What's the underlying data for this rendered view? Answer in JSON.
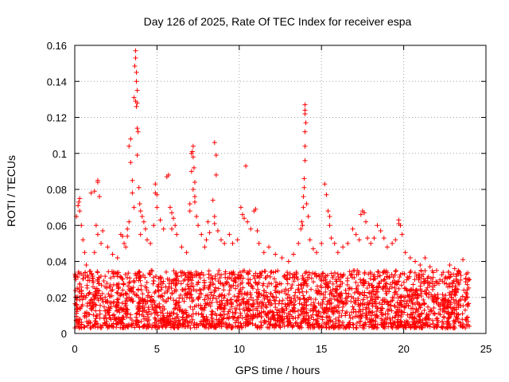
{
  "chart_data": {
    "type": "scatter",
    "title": "Day 126 of 2025, Rate Of TEC Index for receiver espa",
    "xlabel": "GPS time / hours",
    "ylabel": "ROTI / TECUs",
    "xlim": [
      0,
      25
    ],
    "ylim": [
      0,
      0.16
    ],
    "x_ticks": [
      0,
      5,
      10,
      15,
      20,
      25
    ],
    "y_ticks": [
      0,
      0.02,
      0.04,
      0.06,
      0.08,
      0.1,
      0.12,
      0.14,
      0.16
    ],
    "x_tick_labels": [
      "0",
      "5",
      "10",
      "15",
      "20",
      "25"
    ],
    "y_tick_labels": [
      "0",
      "0.02",
      "0.04",
      "0.06",
      "0.08",
      "0.1",
      "0.12",
      "0.14",
      "0.16"
    ],
    "grid": true,
    "marker": "+",
    "color": "#ff0000",
    "background_band": {
      "description": "dense ROTI scatter between 0.003 and ~0.035 TECU across all hours",
      "x_range": [
        0,
        24
      ],
      "y_range": [
        0.003,
        0.035
      ]
    },
    "series": [
      {
        "name": "espa",
        "points": [
          [
            0.1,
            0.065
          ],
          [
            0.2,
            0.071
          ],
          [
            0.25,
            0.073
          ],
          [
            0.3,
            0.068
          ],
          [
            0.3,
            0.075
          ],
          [
            0.4,
            0.06
          ],
          [
            0.5,
            0.052
          ],
          [
            0.6,
            0.045
          ],
          [
            0.7,
            0.038
          ],
          [
            1.0,
            0.078
          ],
          [
            1.2,
            0.079
          ],
          [
            1.4,
            0.084
          ],
          [
            1.4,
            0.085
          ],
          [
            1.5,
            0.076
          ],
          [
            1.3,
            0.06
          ],
          [
            1.4,
            0.055
          ],
          [
            1.6,
            0.05
          ],
          [
            1.7,
            0.057
          ],
          [
            1.2,
            0.045
          ],
          [
            2.0,
            0.048
          ],
          [
            2.3,
            0.044
          ],
          [
            2.6,
            0.042
          ],
          [
            2.8,
            0.055
          ],
          [
            2.9,
            0.054
          ],
          [
            3.0,
            0.05
          ],
          [
            3.2,
            0.058
          ],
          [
            3.3,
            0.104
          ],
          [
            3.4,
            0.108
          ],
          [
            3.4,
            0.095
          ],
          [
            3.5,
            0.085
          ],
          [
            3.5,
            0.078
          ],
          [
            3.6,
            0.07
          ],
          [
            3.3,
            0.062
          ],
          [
            3.2,
            0.054
          ],
          [
            3.1,
            0.048
          ],
          [
            3.6,
            0.131
          ],
          [
            3.65,
            0.1485
          ],
          [
            3.7,
            0.157
          ],
          [
            3.7,
            0.153
          ],
          [
            3.75,
            0.145
          ],
          [
            3.75,
            0.14
          ],
          [
            3.8,
            0.135
          ],
          [
            3.7,
            0.129
          ],
          [
            3.75,
            0.126
          ],
          [
            3.8,
            0.128
          ],
          [
            3.8,
            0.114
          ],
          [
            3.85,
            0.112
          ],
          [
            3.8,
            0.099
          ],
          [
            3.9,
            0.081
          ],
          [
            3.95,
            0.072
          ],
          [
            4.0,
            0.068
          ],
          [
            4.1,
            0.065
          ],
          [
            4.2,
            0.062
          ],
          [
            4.3,
            0.058
          ],
          [
            4.0,
            0.055
          ],
          [
            4.4,
            0.052
          ],
          [
            4.6,
            0.05
          ],
          [
            4.8,
            0.06
          ],
          [
            4.9,
            0.078
          ],
          [
            4.9,
            0.083
          ],
          [
            5.0,
            0.077
          ],
          [
            5.0,
            0.07
          ],
          [
            5.2,
            0.063
          ],
          [
            5.4,
            0.058
          ],
          [
            5.6,
            0.087
          ],
          [
            5.7,
            0.088
          ],
          [
            5.8,
            0.07
          ],
          [
            5.9,
            0.067
          ],
          [
            6.0,
            0.064
          ],
          [
            6.1,
            0.06
          ],
          [
            5.9,
            0.058
          ],
          [
            6.2,
            0.055
          ],
          [
            6.5,
            0.048
          ],
          [
            6.8,
            0.045
          ],
          [
            7.0,
            0.072
          ],
          [
            7.0,
            0.068
          ],
          [
            7.1,
            0.09
          ],
          [
            7.1,
            0.1
          ],
          [
            7.15,
            0.101
          ],
          [
            7.2,
            0.104
          ],
          [
            7.2,
            0.098
          ],
          [
            7.25,
            0.092
          ],
          [
            7.3,
            0.084
          ],
          [
            7.2,
            0.08
          ],
          [
            7.3,
            0.076
          ],
          [
            7.3,
            0.073
          ],
          [
            7.4,
            0.065
          ],
          [
            7.5,
            0.06
          ],
          [
            7.7,
            0.055
          ],
          [
            7.9,
            0.048
          ],
          [
            8.0,
            0.052
          ],
          [
            8.1,
            0.062
          ],
          [
            8.2,
            0.056
          ],
          [
            8.4,
            0.074
          ],
          [
            8.5,
            0.065
          ],
          [
            8.5,
            0.061
          ],
          [
            8.5,
            0.106
          ],
          [
            8.6,
            0.099
          ],
          [
            8.6,
            0.088
          ],
          [
            8.7,
            0.057
          ],
          [
            8.9,
            0.052
          ],
          [
            9.1,
            0.05
          ],
          [
            9.4,
            0.055
          ],
          [
            9.6,
            0.05
          ],
          [
            9.9,
            0.052
          ],
          [
            10.1,
            0.07
          ],
          [
            10.2,
            0.066
          ],
          [
            10.3,
            0.064
          ],
          [
            10.4,
            0.093
          ],
          [
            10.5,
            0.062
          ],
          [
            10.7,
            0.058
          ],
          [
            10.9,
            0.068
          ],
          [
            11.0,
            0.069
          ],
          [
            11.1,
            0.057
          ],
          [
            11.2,
            0.05
          ],
          [
            11.5,
            0.045
          ],
          [
            11.8,
            0.048
          ],
          [
            12.2,
            0.044
          ],
          [
            12.6,
            0.042
          ],
          [
            13.0,
            0.04
          ],
          [
            13.3,
            0.044
          ],
          [
            13.6,
            0.05
          ],
          [
            13.75,
            0.058
          ],
          [
            13.8,
            0.062
          ],
          [
            13.85,
            0.06
          ],
          [
            13.9,
            0.07
          ],
          [
            13.9,
            0.076
          ],
          [
            13.95,
            0.081
          ],
          [
            13.95,
            0.086
          ],
          [
            14.0,
            0.096
          ],
          [
            14.0,
            0.104
          ],
          [
            14.0,
            0.112
          ],
          [
            14.05,
            0.117
          ],
          [
            14.0,
            0.122
          ],
          [
            14.0,
            0.124
          ],
          [
            14.0,
            0.127
          ],
          [
            14.1,
            0.072
          ],
          [
            14.2,
            0.065
          ],
          [
            14.3,
            0.052
          ],
          [
            14.5,
            0.047
          ],
          [
            14.7,
            0.045
          ],
          [
            15.0,
            0.05
          ],
          [
            15.2,
            0.083
          ],
          [
            15.3,
            0.077
          ],
          [
            15.4,
            0.068
          ],
          [
            15.5,
            0.065
          ],
          [
            15.5,
            0.06
          ],
          [
            15.6,
            0.053
          ],
          [
            15.8,
            0.05
          ],
          [
            16.0,
            0.045
          ],
          [
            16.3,
            0.048
          ],
          [
            16.6,
            0.05
          ],
          [
            16.9,
            0.058
          ],
          [
            17.1,
            0.055
          ],
          [
            17.3,
            0.052
          ],
          [
            17.4,
            0.066
          ],
          [
            17.5,
            0.068
          ],
          [
            17.6,
            0.067
          ],
          [
            17.7,
            0.062
          ],
          [
            17.8,
            0.053
          ],
          [
            18.0,
            0.05
          ],
          [
            18.2,
            0.053
          ],
          [
            18.4,
            0.06
          ],
          [
            18.6,
            0.057
          ],
          [
            18.8,
            0.053
          ],
          [
            19.0,
            0.048
          ],
          [
            19.3,
            0.05
          ],
          [
            19.5,
            0.052
          ],
          [
            19.7,
            0.063
          ],
          [
            19.7,
            0.061
          ],
          [
            19.8,
            0.06
          ],
          [
            19.9,
            0.055
          ],
          [
            20.1,
            0.045
          ],
          [
            20.4,
            0.042
          ],
          [
            20.7,
            0.04
          ],
          [
            21.0,
            0.038
          ],
          [
            21.3,
            0.042
          ],
          [
            21.6,
            0.037
          ],
          [
            22.0,
            0.035
          ],
          [
            22.4,
            0.034
          ],
          [
            22.8,
            0.038
          ],
          [
            23.1,
            0.036
          ],
          [
            23.4,
            0.034
          ],
          [
            23.6,
            0.041
          ],
          [
            23.8,
            0.033
          ],
          [
            24.0,
            0.03
          ]
        ]
      }
    ]
  }
}
